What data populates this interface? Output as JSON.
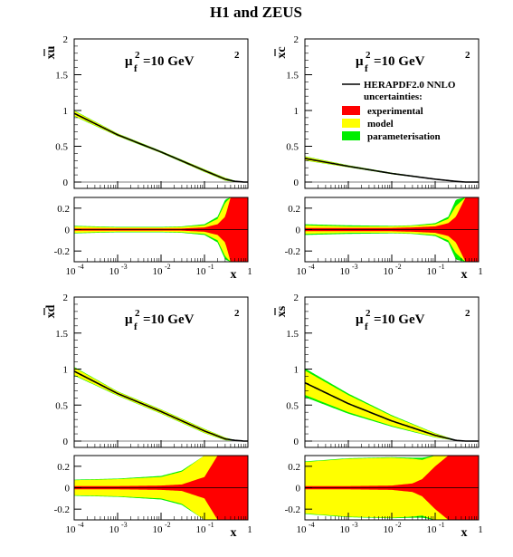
{
  "title": "H1 and ZEUS",
  "scale_label": "=10 GeV",
  "scale_sym": "μ",
  "scale_sub": "f",
  "scale_sup": "2",
  "x_axis_label": "x",
  "legend": {
    "line": "HERAPDF2.0 NNLO",
    "heading": "uncertainties:",
    "items": [
      {
        "label": "experimental",
        "color": "#ff0000"
      },
      {
        "label": "model",
        "color": "#ffff00"
      },
      {
        "label": "parameterisation",
        "color": "#00ee00"
      }
    ]
  },
  "colors": {
    "central": "#000000",
    "experimental": "#ff0000",
    "model": "#ffff00",
    "parameterisation": "#00ee00",
    "frame": "#000000"
  },
  "x_ticks": {
    "log_min": -4,
    "log_max": 0,
    "labels": [
      "10-4",
      "10-3",
      "10-2",
      "10-1",
      "1"
    ]
  },
  "chart_data": [
    {
      "type": "area",
      "id": "xu",
      "ylabel": "xu",
      "xscale": "log",
      "ylim": [
        0,
        2
      ],
      "yticks": [
        "0",
        "0.5",
        "1",
        "1.5",
        "2"
      ],
      "x": [
        0.0001,
        0.001,
        0.01,
        0.1,
        0.3,
        0.5,
        0.8,
        1
      ],
      "central": [
        0.96,
        0.66,
        0.42,
        0.16,
        0.04,
        0.01,
        0.0,
        0.0
      ],
      "band_halfwidth": [
        0.04,
        0.02,
        0.015,
        0.02,
        0.02,
        0.01,
        0.0,
        0.0
      ],
      "ratio": {
        "ylim": [
          -0.3,
          0.3
        ],
        "yticks": [
          "0.2",
          "0",
          "-0.2"
        ],
        "x": [
          0.0001,
          0.001,
          0.01,
          0.03,
          0.1,
          0.2,
          0.3,
          0.4,
          0.6,
          1
        ],
        "exp": [
          0.01,
          0.01,
          0.01,
          0.01,
          0.02,
          0.05,
          0.12,
          0.3,
          0.3,
          0.3
        ],
        "model": [
          0.03,
          0.02,
          0.02,
          0.025,
          0.04,
          0.1,
          0.25,
          0.3,
          0.3,
          0.3
        ],
        "param": [
          0.035,
          0.025,
          0.025,
          0.03,
          0.05,
          0.12,
          0.28,
          0.3,
          0.3,
          0.3
        ]
      }
    },
    {
      "type": "area",
      "id": "xc",
      "ylabel": "xc",
      "xscale": "log",
      "ylim": [
        0,
        2
      ],
      "yticks": [
        "0",
        "0.5",
        "1",
        "1.5",
        "2"
      ],
      "x": [
        0.0001,
        0.001,
        0.01,
        0.1,
        0.3,
        0.5,
        1
      ],
      "central": [
        0.33,
        0.22,
        0.12,
        0.04,
        0.01,
        0.0,
        0.0
      ],
      "band_halfwidth": [
        0.03,
        0.015,
        0.01,
        0.005,
        0.002,
        0.0,
        0.0
      ],
      "ratio": {
        "ylim": [
          -0.3,
          0.3
        ],
        "yticks": [
          "0.2",
          "0",
          "-0.2"
        ],
        "x": [
          0.0001,
          0.001,
          0.01,
          0.03,
          0.1,
          0.2,
          0.3,
          0.5,
          1
        ],
        "exp": [
          0.015,
          0.015,
          0.015,
          0.02,
          0.03,
          0.06,
          0.12,
          0.3,
          0.3
        ],
        "model": [
          0.04,
          0.03,
          0.03,
          0.035,
          0.05,
          0.1,
          0.22,
          0.3,
          0.3
        ],
        "param": [
          0.05,
          0.04,
          0.035,
          0.04,
          0.06,
          0.12,
          0.28,
          0.3,
          0.3
        ]
      }
    },
    {
      "type": "area",
      "id": "xd",
      "ylabel": "xd",
      "xscale": "log",
      "ylim": [
        0,
        2
      ],
      "yticks": [
        "0",
        "0.5",
        "1",
        "1.5",
        "2"
      ],
      "x": [
        0.0001,
        0.001,
        0.01,
        0.1,
        0.3,
        0.5,
        0.8,
        1
      ],
      "central": [
        0.97,
        0.66,
        0.41,
        0.14,
        0.03,
        0.01,
        0.0,
        0.0
      ],
      "band_halfwidth": [
        0.06,
        0.03,
        0.03,
        0.03,
        0.02,
        0.005,
        0.0,
        0.0
      ],
      "ratio": {
        "ylim": [
          -0.3,
          0.3
        ],
        "yticks": [
          "0.2",
          "0",
          "-0.2"
        ],
        "x": [
          0.0001,
          0.001,
          0.01,
          0.03,
          0.1,
          0.2,
          0.3,
          1
        ],
        "exp": [
          0.015,
          0.015,
          0.02,
          0.03,
          0.1,
          0.3,
          0.3,
          0.3
        ],
        "model": [
          0.07,
          0.08,
          0.1,
          0.15,
          0.3,
          0.3,
          0.3,
          0.3
        ],
        "param": [
          0.075,
          0.085,
          0.11,
          0.16,
          0.3,
          0.3,
          0.3,
          0.3
        ]
      }
    },
    {
      "type": "area",
      "id": "xs",
      "ylabel": "xs",
      "xscale": "log",
      "ylim": [
        0,
        2
      ],
      "yticks": [
        "0",
        "0.5",
        "1",
        "1.5",
        "2"
      ],
      "x": [
        0.0001,
        0.001,
        0.01,
        0.1,
        0.3,
        0.5,
        1
      ],
      "central": [
        0.81,
        0.52,
        0.28,
        0.08,
        0.01,
        0.0,
        0.0
      ],
      "band_halfwidth": [
        0.2,
        0.14,
        0.08,
        0.03,
        0.005,
        0.0,
        0.0
      ],
      "ratio": {
        "ylim": [
          -0.3,
          0.3
        ],
        "yticks": [
          "0.2",
          "0",
          "-0.2"
        ],
        "x": [
          0.0001,
          0.001,
          0.01,
          0.03,
          0.05,
          0.1,
          0.2,
          1
        ],
        "exp": [
          0.015,
          0.015,
          0.02,
          0.04,
          0.08,
          0.2,
          0.3,
          0.3
        ],
        "model": [
          0.24,
          0.27,
          0.28,
          0.27,
          0.26,
          0.3,
          0.3,
          0.3
        ],
        "param": [
          0.245,
          0.275,
          0.285,
          0.28,
          0.28,
          0.3,
          0.3,
          0.3
        ]
      }
    }
  ]
}
